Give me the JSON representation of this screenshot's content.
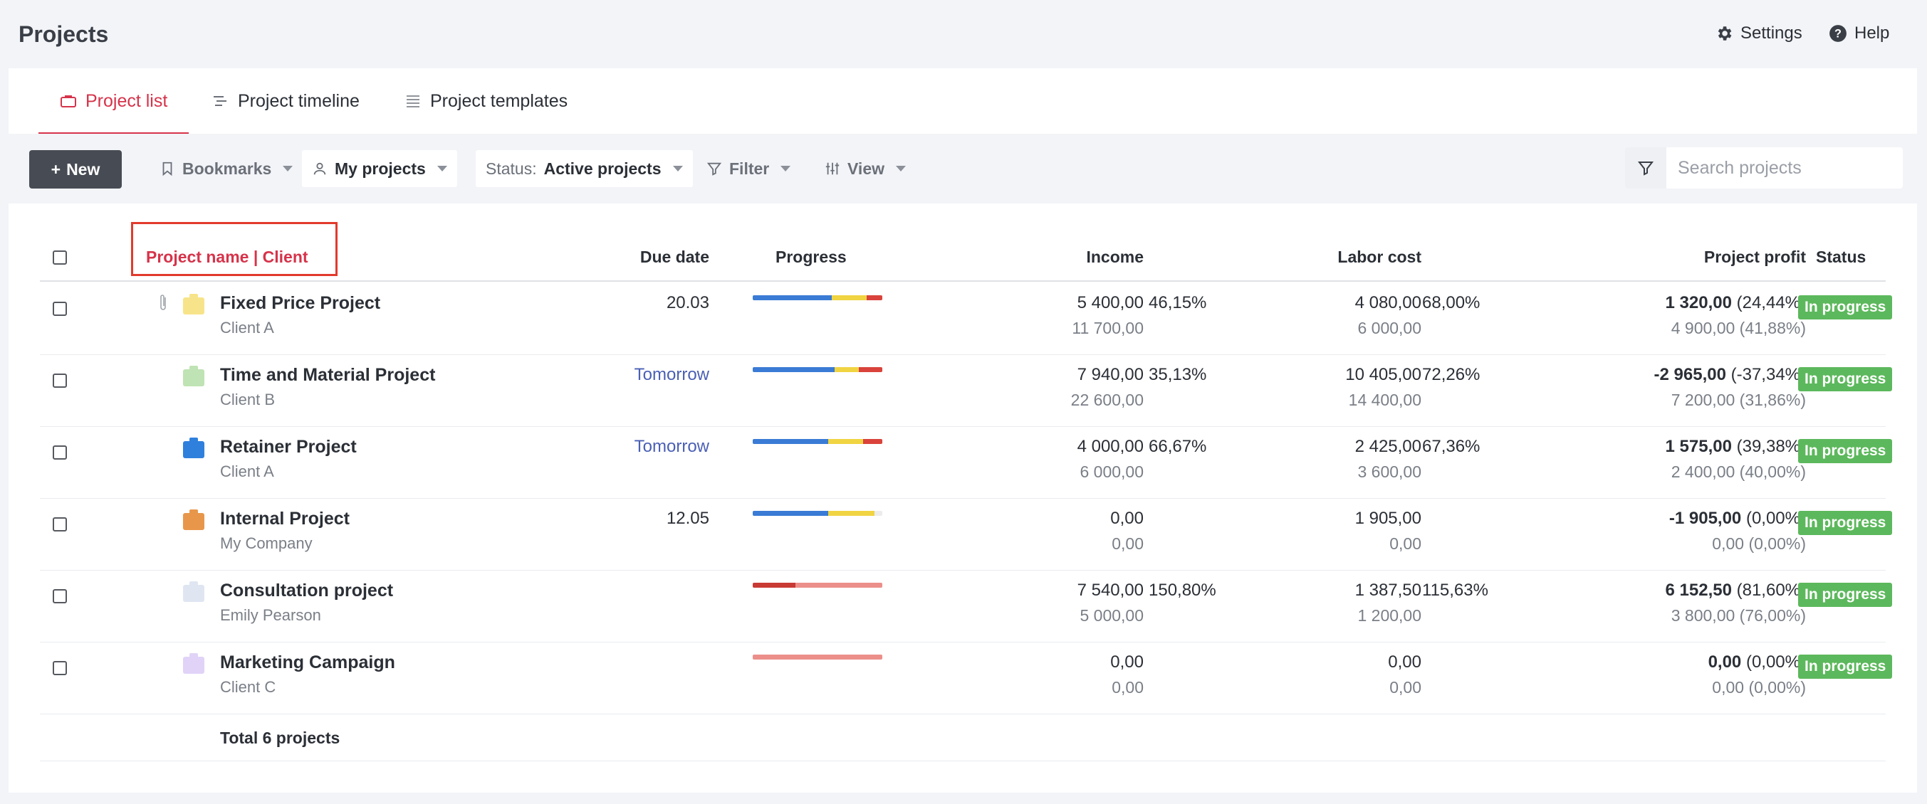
{
  "header": {
    "title": "Projects",
    "settings_label": "Settings",
    "help_label": "Help"
  },
  "tabs": [
    {
      "label": "Project list",
      "active": true
    },
    {
      "label": "Project timeline",
      "active": false
    },
    {
      "label": "Project templates",
      "active": false
    }
  ],
  "toolbar": {
    "new_label": "New",
    "bookmarks_label": "Bookmarks",
    "my_projects_label": "My projects",
    "status_prefix": "Status:",
    "status_value": "Active projects",
    "filter_label": "Filter",
    "view_label": "View",
    "search_placeholder": "Search projects"
  },
  "table": {
    "columns": {
      "name": "Project name | Client",
      "due": "Due date",
      "progress": "Progress",
      "income": "Income",
      "labor": "Labor cost",
      "profit": "Project profit",
      "status": "Status"
    },
    "rows": [
      {
        "name": "Fixed Price Project",
        "client": "Client A",
        "folder_color": "#f7e48a",
        "attachment": true,
        "due": "20.03",
        "due_link": false,
        "progress": [
          [
            "#3a7bd5",
            0.61
          ],
          [
            "#f0d442",
            0.27
          ],
          [
            "#d9433b",
            0.12
          ]
        ],
        "income": "5 400,00",
        "income_sub": "11 700,00",
        "income_pct": "46,15%",
        "labor": "4 080,00",
        "labor_sub": "6 000,00",
        "labor_pct": "68,00%",
        "profit": "1 320,00",
        "profit_pct": "(24,44%)",
        "profit_sub": "4 900,00 (41,88%)",
        "status": "In progress"
      },
      {
        "name": "Time and Material Project",
        "client": "Client B",
        "folder_color": "#bfe3b4",
        "attachment": false,
        "due": "Tomorrow",
        "due_link": true,
        "progress": [
          [
            "#3a7bd5",
            0.63
          ],
          [
            "#f0d442",
            0.19
          ],
          [
            "#d9433b",
            0.18
          ]
        ],
        "income": "7 940,00",
        "income_sub": "22 600,00",
        "income_pct": "35,13%",
        "labor": "10 405,00",
        "labor_sub": "14 400,00",
        "labor_pct": "72,26%",
        "profit": "-2 965,00",
        "profit_pct": "(-37,34%)",
        "profit_sub": "7 200,00 (31,86%)",
        "status": "In progress"
      },
      {
        "name": "Retainer Project",
        "client": "Client A",
        "folder_color": "#2f80dd",
        "attachment": false,
        "due": "Tomorrow",
        "due_link": true,
        "progress": [
          [
            "#3a7bd5",
            0.58
          ],
          [
            "#f0d442",
            0.27
          ],
          [
            "#d9433b",
            0.15
          ]
        ],
        "income": "4 000,00",
        "income_sub": "6 000,00",
        "income_pct": "66,67%",
        "labor": "2 425,00",
        "labor_sub": "3 600,00",
        "labor_pct": "67,36%",
        "profit": "1 575,00",
        "profit_pct": "(39,38%)",
        "profit_sub": "2 400,00 (40,00%)",
        "status": "In progress"
      },
      {
        "name": "Internal Project",
        "client": "My Company",
        "folder_color": "#e8974a",
        "attachment": false,
        "due": "12.05",
        "due_link": false,
        "progress": [
          [
            "#3a7bd5",
            0.58
          ],
          [
            "#f0d442",
            0.36
          ],
          [
            "#ececec",
            0.06
          ]
        ],
        "income": "0,00",
        "income_sub": "0,00",
        "income_pct": "",
        "labor": "1 905,00",
        "labor_sub": "0,00",
        "labor_pct": "",
        "profit": "-1 905,00",
        "profit_pct": "(0,00%)",
        "profit_sub": "0,00 (0,00%)",
        "status": "In progress"
      },
      {
        "name": "Consultation project",
        "client": "Emily Pearson",
        "folder_color": "#dfe6f2",
        "attachment": false,
        "due": "",
        "due_link": false,
        "progress": [
          [
            "#c83a34",
            0.33
          ],
          [
            "#ec8f8a",
            0.67
          ]
        ],
        "income": "7 540,00",
        "income_sub": "5 000,00",
        "income_pct": "150,80%",
        "labor": "1 387,50",
        "labor_sub": "1 200,00",
        "labor_pct": "115,63%",
        "profit": "6 152,50",
        "profit_pct": "(81,60%)",
        "profit_sub": "3 800,00 (76,00%)",
        "status": "In progress"
      },
      {
        "name": "Marketing Campaign",
        "client": "Client C",
        "folder_color": "#e1d3f7",
        "attachment": false,
        "due": "",
        "due_link": false,
        "progress": [
          [
            "#ec8f8a",
            1.0
          ]
        ],
        "income": "0,00",
        "income_sub": "0,00",
        "income_pct": "",
        "labor": "0,00",
        "labor_sub": "0,00",
        "labor_pct": "",
        "profit": "0,00",
        "profit_pct": "(0,00%)",
        "profit_sub": "0,00 (0,00%)",
        "status": "In progress"
      }
    ],
    "total_label": "Total 6 projects"
  }
}
